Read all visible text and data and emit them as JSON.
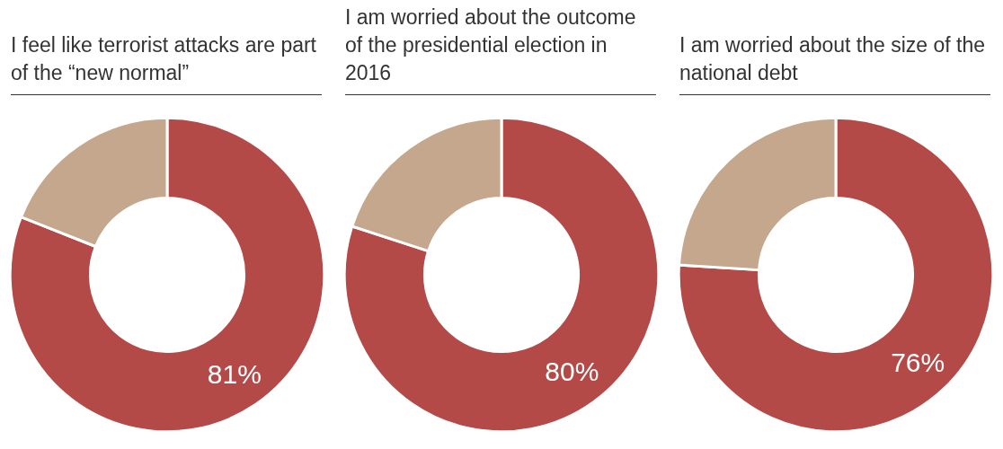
{
  "chart_data": [
    {
      "type": "donut",
      "title": "I feel like terrorist attacks are part of the “new normal”",
      "categories": [
        null,
        null
      ],
      "values": [
        81,
        19
      ],
      "colors": [
        "#b34a47",
        "#c4a78c"
      ],
      "value_labels": [
        "81%",
        null
      ]
    },
    {
      "type": "donut",
      "title": "I am worried about the outcome of the presidential election in 2016",
      "categories": [
        null,
        null
      ],
      "values": [
        80,
        20
      ],
      "colors": [
        "#b34a47",
        "#c4a78c"
      ],
      "value_labels": [
        "80%",
        null
      ]
    },
    {
      "type": "donut",
      "title": "I am worried about the size of the national debt",
      "categories": [
        null,
        null
      ],
      "values": [
        76,
        24
      ],
      "colors": [
        "#b34a47",
        "#c4a78c"
      ],
      "value_labels": [
        "76%",
        null
      ]
    }
  ]
}
